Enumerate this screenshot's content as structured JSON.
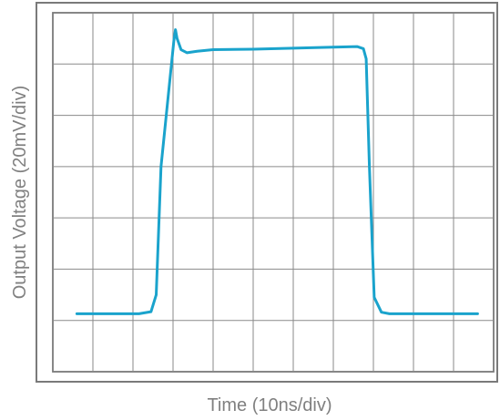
{
  "chart_data": {
    "type": "line",
    "title": "",
    "xlabel": "Time (10ns/div)",
    "ylabel": "Output Voltage (20mV/div)",
    "divisions": {
      "x": 11,
      "y": 7
    },
    "grid": true,
    "xlim": [
      0,
      11
    ],
    "ylim": [
      0,
      7
    ],
    "colors": {
      "trace": "#1aa3cc",
      "grid": "#8a8a8a",
      "frame": "#7a7a7a",
      "text": "#808080"
    },
    "series": [
      {
        "x": [
          0.6,
          2.15,
          2.45,
          2.58,
          2.7,
          3.02,
          3.06,
          3.1,
          3.2,
          3.35,
          3.6,
          4.0,
          5.0,
          6.0,
          7.0,
          7.6,
          7.75,
          7.82,
          7.9,
          8.02,
          8.2,
          8.4,
          8.7,
          10.6
        ],
        "y": [
          1.13,
          1.13,
          1.17,
          1.5,
          4.0,
          6.45,
          6.67,
          6.5,
          6.28,
          6.22,
          6.25,
          6.28,
          6.29,
          6.31,
          6.33,
          6.34,
          6.3,
          6.1,
          4.0,
          1.45,
          1.16,
          1.13,
          1.13,
          1.13
        ]
      }
    ]
  }
}
